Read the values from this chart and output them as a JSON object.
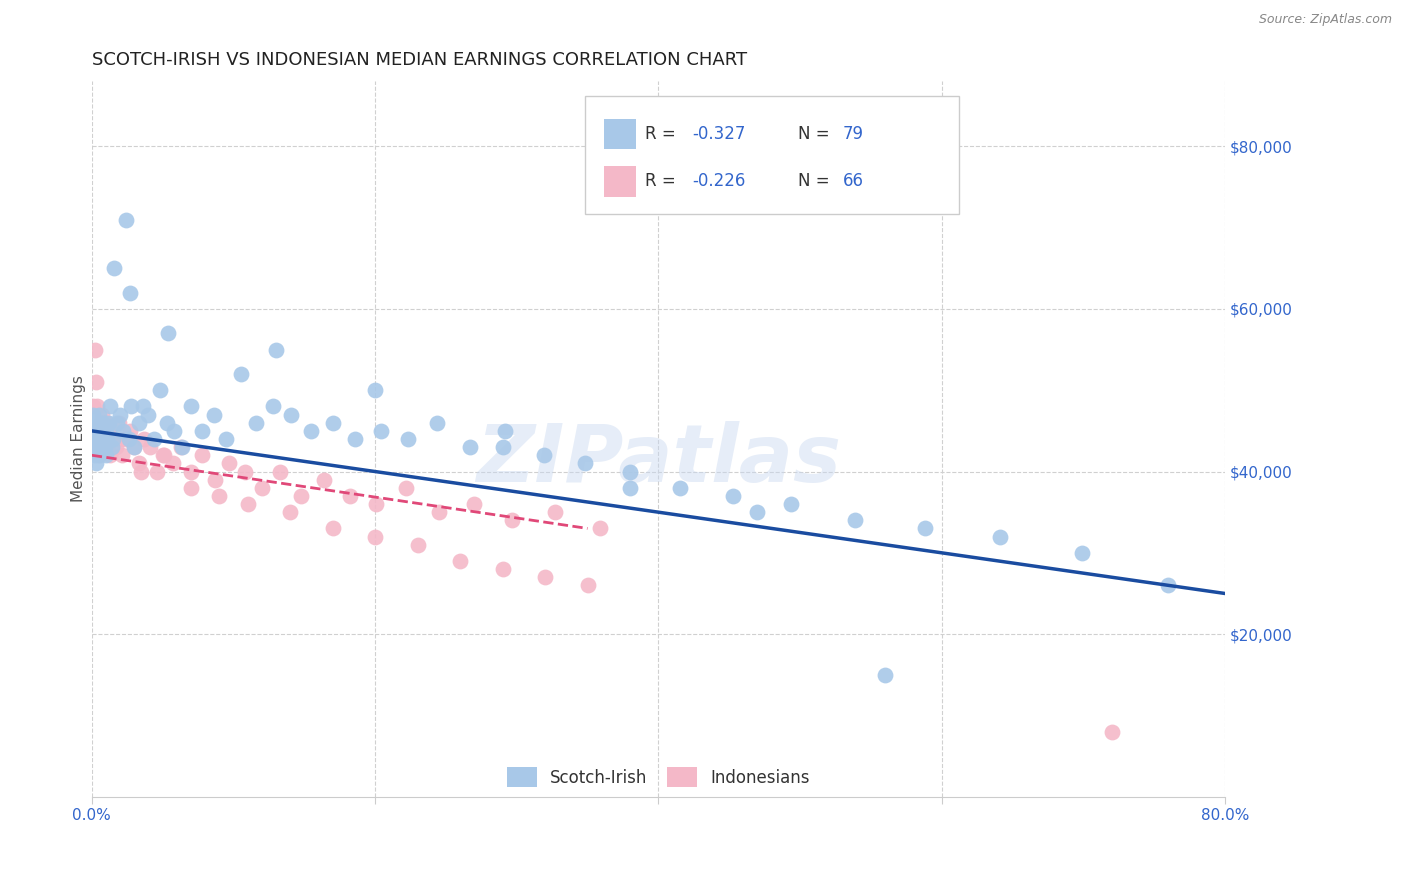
{
  "title": "SCOTCH-IRISH VS INDONESIAN MEDIAN EARNINGS CORRELATION CHART",
  "source": "Source: ZipAtlas.com",
  "ylabel": "Median Earnings",
  "xlim": [
    0.0,
    0.8
  ],
  "ylim": [
    0,
    88000
  ],
  "yticks": [
    20000,
    40000,
    60000,
    80000
  ],
  "ytick_labels": [
    "$20,000",
    "$40,000",
    "$60,000",
    "$80,000"
  ],
  "xticks": [
    0.0,
    0.2,
    0.4,
    0.6,
    0.8
  ],
  "xtick_labels": [
    "0.0%",
    "",
    "",
    "",
    "80.0%"
  ],
  "color_blue": "#a8c8e8",
  "color_pink": "#f4b8c8",
  "color_blue_line": "#1a4ca0",
  "color_pink_line": "#e04878",
  "color_axis_text": "#3366cc",
  "watermark": "ZIPatlas",
  "scotch_irish_x": [
    0.001,
    0.001,
    0.001,
    0.002,
    0.002,
    0.002,
    0.003,
    0.003,
    0.003,
    0.004,
    0.004,
    0.005,
    0.005,
    0.005,
    0.006,
    0.006,
    0.007,
    0.007,
    0.008,
    0.008,
    0.009,
    0.01,
    0.01,
    0.011,
    0.012,
    0.013,
    0.014,
    0.015,
    0.016,
    0.018,
    0.02,
    0.022,
    0.024,
    0.026,
    0.028,
    0.03,
    0.033,
    0.036,
    0.04,
    0.044,
    0.048,
    0.053,
    0.058,
    0.064,
    0.07,
    0.078,
    0.086,
    0.095,
    0.105,
    0.116,
    0.128,
    0.141,
    0.155,
    0.17,
    0.186,
    0.204,
    0.223,
    0.244,
    0.267,
    0.292,
    0.319,
    0.348,
    0.38,
    0.415,
    0.453,
    0.494,
    0.539,
    0.588,
    0.641,
    0.699,
    0.76,
    0.054,
    0.027,
    0.13,
    0.2,
    0.29,
    0.38,
    0.47,
    0.56
  ],
  "scotch_irish_y": [
    47000,
    44000,
    43000,
    46000,
    44000,
    42000,
    45000,
    43000,
    41000,
    46000,
    44000,
    47000,
    45000,
    42000,
    44000,
    43000,
    45000,
    43000,
    46000,
    44000,
    43000,
    45000,
    42000,
    44000,
    46000,
    48000,
    43000,
    44000,
    65000,
    46000,
    47000,
    45000,
    71000,
    44000,
    48000,
    43000,
    46000,
    48000,
    47000,
    44000,
    50000,
    46000,
    45000,
    43000,
    48000,
    45000,
    47000,
    44000,
    52000,
    46000,
    48000,
    47000,
    45000,
    46000,
    44000,
    45000,
    44000,
    46000,
    43000,
    45000,
    42000,
    41000,
    40000,
    38000,
    37000,
    36000,
    34000,
    33000,
    32000,
    30000,
    26000,
    57000,
    62000,
    55000,
    50000,
    43000,
    38000,
    35000,
    15000
  ],
  "indonesian_x": [
    0.001,
    0.001,
    0.002,
    0.002,
    0.003,
    0.003,
    0.004,
    0.004,
    0.005,
    0.005,
    0.006,
    0.006,
    0.007,
    0.008,
    0.009,
    0.01,
    0.011,
    0.012,
    0.013,
    0.015,
    0.017,
    0.019,
    0.021,
    0.024,
    0.027,
    0.03,
    0.033,
    0.037,
    0.041,
    0.046,
    0.051,
    0.057,
    0.063,
    0.07,
    0.078,
    0.087,
    0.097,
    0.108,
    0.12,
    0.133,
    0.148,
    0.164,
    0.182,
    0.201,
    0.222,
    0.245,
    0.27,
    0.297,
    0.327,
    0.359,
    0.01,
    0.02,
    0.035,
    0.05,
    0.07,
    0.09,
    0.11,
    0.14,
    0.17,
    0.2,
    0.23,
    0.26,
    0.29,
    0.32,
    0.35,
    0.72
  ],
  "indonesian_y": [
    48000,
    44000,
    55000,
    43000,
    51000,
    44000,
    43000,
    48000,
    45000,
    42000,
    46000,
    44000,
    47000,
    45000,
    44000,
    46000,
    43000,
    45000,
    42000,
    44000,
    43000,
    46000,
    42000,
    44000,
    45000,
    43000,
    41000,
    44000,
    43000,
    40000,
    42000,
    41000,
    43000,
    40000,
    42000,
    39000,
    41000,
    40000,
    38000,
    40000,
    37000,
    39000,
    37000,
    36000,
    38000,
    35000,
    36000,
    34000,
    35000,
    33000,
    46000,
    44000,
    40000,
    42000,
    38000,
    37000,
    36000,
    35000,
    33000,
    32000,
    31000,
    29000,
    28000,
    27000,
    26000,
    8000
  ],
  "background_color": "#ffffff",
  "grid_color": "#d0d0d0",
  "title_fontsize": 13,
  "axis_label_fontsize": 11,
  "tick_fontsize": 11,
  "legend_fontsize": 12
}
